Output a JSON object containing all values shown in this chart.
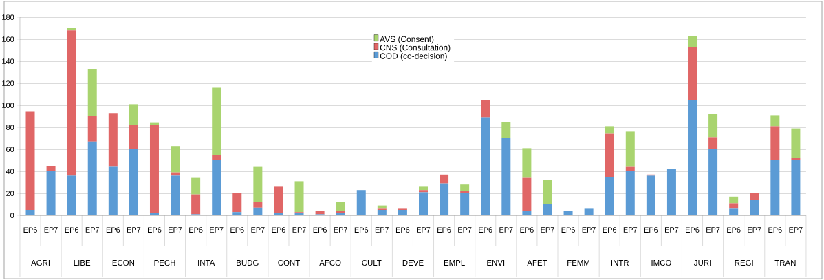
{
  "chart_data": {
    "type": "bar",
    "stacked": true,
    "grid": "y",
    "legend": "top",
    "categories": [
      "EP6",
      "EP7",
      "EP6",
      "EP7",
      "EP6",
      "EP7",
      "EP6",
      "EP7",
      "EP6",
      "EP7",
      "EP6",
      "EP7",
      "EP6",
      "EP7",
      "EP6",
      "EP7",
      "EP6",
      "EP7",
      "EP6",
      "EP7",
      "EP6",
      "EP7",
      "EP6",
      "EP7",
      "EP6",
      "EP7",
      "EP6",
      "EP7",
      "EP6",
      "EP7",
      "EP6",
      "EP7",
      "EP6",
      "EP7",
      "EP6",
      "EP7",
      "EP6",
      "EP7"
    ],
    "annotations": [
      "AGRI",
      "LIBE",
      "ECON",
      "PECH",
      "INTA",
      "BUDG",
      "CONT",
      "AFCO",
      "CULT",
      "DEVE",
      "EMPL",
      "ENVI",
      "AFET",
      "FEMM",
      "INTR",
      "IMCO",
      "JURI",
      "REGI",
      "TRAN"
    ],
    "ylim": [
      0,
      180
    ],
    "yticks": [
      0,
      20,
      40,
      60,
      80,
      100,
      120,
      140,
      160,
      180
    ],
    "series": [
      {
        "name": "COD (co-decision)",
        "color": "#5b9bd5",
        "values": [
          5,
          40,
          36,
          67,
          44,
          60,
          2,
          36,
          1,
          50,
          3,
          7,
          2,
          2,
          1,
          2,
          23,
          5,
          5,
          21,
          29,
          20,
          89,
          70,
          4,
          10,
          4,
          6,
          35,
          40,
          36,
          42,
          105,
          60,
          6,
          14,
          50,
          50
        ]
      },
      {
        "name": "CNS (Consultation)",
        "color": "#e06666",
        "values": [
          89,
          5,
          132,
          23,
          49,
          22,
          80,
          3,
          18,
          5,
          17,
          5,
          24,
          1,
          3,
          2,
          0,
          1,
          1,
          2,
          8,
          2,
          16,
          0,
          30,
          0,
          0,
          0,
          39,
          4,
          1,
          0,
          48,
          11,
          5,
          6,
          31,
          2
        ]
      },
      {
        "name": "AVS (Consent)",
        "color": "#a9d46f",
        "values": [
          0,
          0,
          2,
          43,
          0,
          19,
          2,
          24,
          15,
          61,
          0,
          32,
          0,
          28,
          0,
          8,
          0,
          3,
          0,
          3,
          0,
          6,
          0,
          15,
          27,
          22,
          0,
          0,
          7,
          32,
          0,
          0,
          10,
          21,
          6,
          0,
          10,
          27
        ]
      }
    ]
  }
}
